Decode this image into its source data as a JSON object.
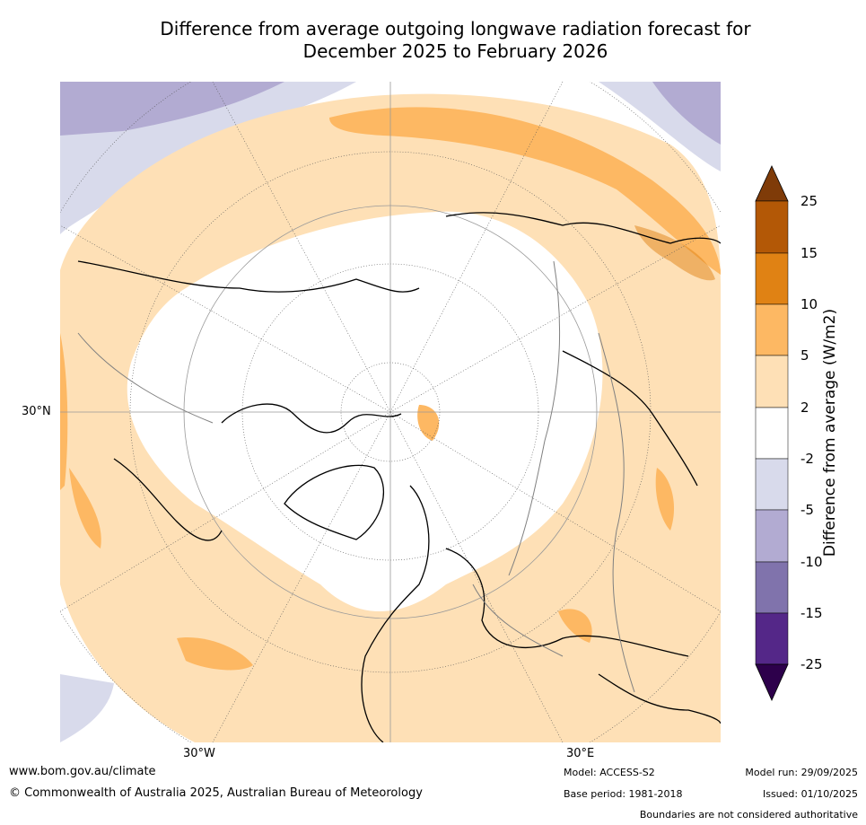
{
  "title_line1": "Difference from average outgoing longwave radiation forecast for",
  "title_line2": "December 2025 to February 2026",
  "axes": {
    "lat_label": "30°N",
    "lon_left": "30°W",
    "lon_right": "30°E"
  },
  "colorbar": {
    "label": "Difference from average (W/m2)",
    "ticks": [
      "25",
      "15",
      "10",
      "5",
      "2",
      "-2",
      "-5",
      "-10",
      "-15",
      "-25"
    ],
    "colors": {
      "over": "#7f3b08",
      "b15_25": "#b35806",
      "b10_15": "#e08214",
      "b5_10": "#fdb863",
      "b2_5": "#fee0b6",
      "neutral": "#ffffff",
      "bm5_m2": "#d8daeb",
      "bm10_m5": "#b2abd2",
      "bm15_m10": "#8073ac",
      "bm25_m15": "#542788",
      "under": "#2d004b"
    }
  },
  "footer": {
    "website": "www.bom.gov.au/climate",
    "copyright": "© Commonwealth of Australia 2025, Australian Bureau of Meteorology",
    "model": "Model: ACCESS-S2",
    "base_period": "Base period: 1981-2018",
    "model_run": "Model run: 29/09/2025",
    "issued": "Issued: 01/10/2025",
    "disclaimer": "Boundaries are not considered authoritative"
  }
}
